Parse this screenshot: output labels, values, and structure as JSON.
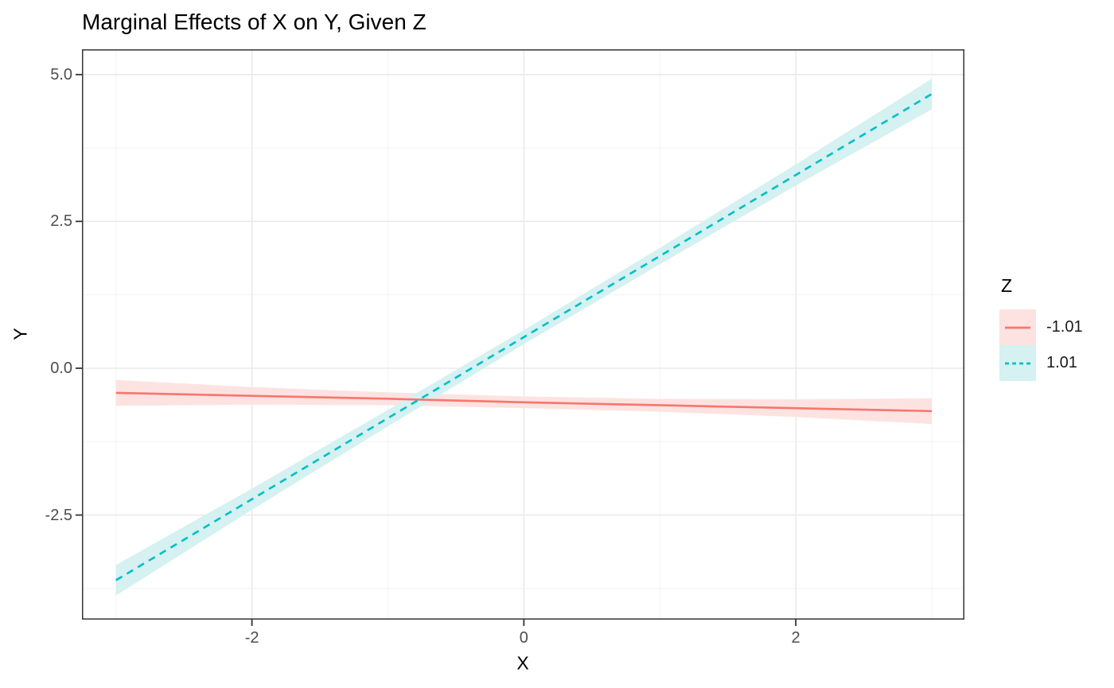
{
  "title": "Marginal Effects of X on Y, Given Z",
  "axes": {
    "x_label": "X",
    "y_label": "Y",
    "x_tick_labels": [
      "-2",
      "0",
      "2"
    ],
    "y_tick_labels": [
      "5.0",
      "2.5",
      "0.0",
      "-2.5"
    ]
  },
  "legend": {
    "title": "Z",
    "items": [
      {
        "label": "-1.01",
        "color": "#F8766D",
        "fill": "#FCE3E1",
        "linetype": "solid"
      },
      {
        "label": "1.01",
        "color": "#00BFC4",
        "fill": "#D5F1F2",
        "linetype": "dashed"
      }
    ]
  },
  "colors": {
    "background": "#FFFFFF",
    "panel_background": "#FFFFFF",
    "panel_border": "#333333",
    "grid_major": "#E8E8E8",
    "grid_minor": "#F3F3F3",
    "tick_mark": "#333333",
    "tick_label": "#4D4D4D",
    "text": "#000000"
  },
  "chart_data": {
    "type": "line",
    "title": "Marginal Effects of X on Y, Given Z",
    "xlabel": "X",
    "ylabel": "Y",
    "xlim": [
      -3.25,
      3.24
    ],
    "ylim": [
      -4.28,
      5.43
    ],
    "x_major_ticks": [
      -2,
      0,
      2
    ],
    "x_minor_ticks": [
      -3,
      -1,
      1,
      3
    ],
    "y_major_ticks": [
      5,
      2.5,
      0,
      -2.5
    ],
    "y_minor_ticks": [
      3.75,
      1.25,
      -1.25,
      -3.75
    ],
    "grid": true,
    "legend_position": "right",
    "legend_title": "Z",
    "series": [
      {
        "name": "-1.01",
        "linetype": "solid",
        "color": "#F8766D",
        "fill": "#FCE3E1",
        "x": [
          -3,
          -2,
          -1,
          0,
          1,
          2,
          3
        ],
        "y": [
          -0.42,
          -0.47,
          -0.52,
          -0.58,
          -0.63,
          -0.68,
          -0.73
        ],
        "ci_lower": [
          -0.64,
          -0.62,
          -0.63,
          -0.68,
          -0.74,
          -0.83,
          -0.95
        ],
        "ci_upper": [
          -0.2,
          -0.32,
          -0.41,
          -0.48,
          -0.52,
          -0.53,
          -0.51
        ]
      },
      {
        "name": "1.01",
        "linetype": "dashed",
        "color": "#00BFC4",
        "fill": "#D5F1F2",
        "x": [
          -3,
          -2,
          -1,
          0,
          1,
          2,
          3
        ],
        "y": [
          -3.61,
          -2.23,
          -0.85,
          0.53,
          1.91,
          3.29,
          4.67
        ],
        "ci_lower": [
          -3.87,
          -2.41,
          -0.99,
          0.41,
          1.77,
          3.11,
          4.41
        ],
        "ci_upper": [
          -3.35,
          -2.05,
          -0.71,
          0.65,
          2.05,
          3.47,
          4.93
        ]
      }
    ]
  }
}
